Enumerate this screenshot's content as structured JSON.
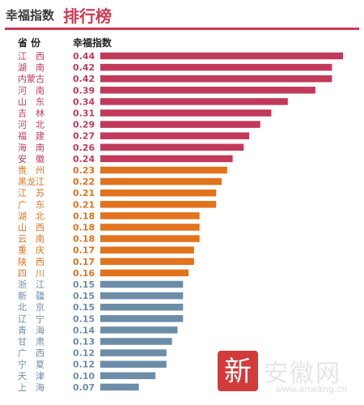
{
  "header": {
    "title_main": "幸福指数",
    "title_accent": "排行榜"
  },
  "columns": {
    "province": "省 份",
    "index": "幸福指数"
  },
  "colors": {
    "accent": "#d13a55",
    "tier1": "#c23a5b",
    "tier2": "#e2731e",
    "tier3": "#6c8da8"
  },
  "watermark": {
    "logo_text": "安徽网",
    "url": "www.ahwang.cn",
    "seal_char": "新"
  },
  "chart_data": {
    "type": "bar",
    "orientation": "horizontal",
    "categories": [
      "江　西",
      "湖　南",
      "内蒙古",
      "河　南",
      "山　东",
      "吉　林",
      "河　北",
      "福　建",
      "海　南",
      "安　徽",
      "贵　州",
      "黑龙江",
      "江　苏",
      "广　东",
      "湖　北",
      "山　西",
      "云　南",
      "重　庆",
      "陕　西",
      "四　川",
      "浙　江",
      "新　疆",
      "北　京",
      "辽　宁",
      "青　海",
      "甘　肃",
      "广　西",
      "宁　夏",
      "天　津",
      "上　海"
    ],
    "values": [
      0.44,
      0.42,
      0.42,
      0.39,
      0.34,
      0.31,
      0.29,
      0.27,
      0.26,
      0.24,
      0.23,
      0.22,
      0.21,
      0.21,
      0.18,
      0.18,
      0.18,
      0.17,
      0.17,
      0.16,
      0.15,
      0.15,
      0.15,
      0.15,
      0.14,
      0.13,
      0.12,
      0.12,
      0.1,
      0.07
    ],
    "value_labels": [
      "0.44",
      "0.42",
      "0.42",
      "0.39",
      "0.34",
      "0.31",
      "0.29",
      "0.27",
      "0.26",
      "0.24",
      "0.23",
      "0.22",
      "0.21",
      "0.21",
      "0.18",
      "0.18",
      "0.18",
      "0.17",
      "0.17",
      "0.16",
      "0.15",
      "0.15",
      "0.15",
      "0.15",
      "0.14",
      "0.13",
      "0.12",
      "0.12",
      "0.10",
      "0.07"
    ],
    "tiers": [
      1,
      1,
      1,
      1,
      1,
      1,
      1,
      1,
      1,
      1,
      2,
      2,
      2,
      2,
      2,
      2,
      2,
      2,
      2,
      2,
      3,
      3,
      3,
      3,
      3,
      3,
      3,
      3,
      3,
      3
    ],
    "title": "幸福指数排行榜",
    "xlabel": "",
    "ylabel": "",
    "xlim": [
      0,
      0.44
    ]
  }
}
